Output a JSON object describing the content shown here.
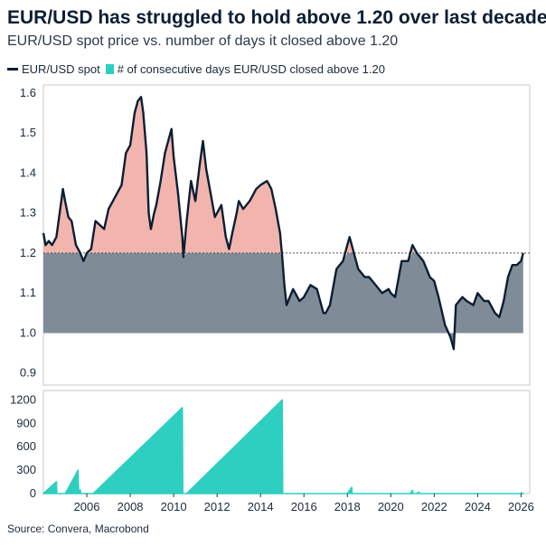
{
  "title": "EUR/USD has struggled to hold above 1.20 over last decade",
  "subtitle": "EUR/USD spot price vs. number of days it closed above 1.20",
  "legend": {
    "spot": "EUR/USD spot",
    "days": "# of consecutive days EUR/USD closed above 1.20"
  },
  "source": "Source: Convera, Macrobond",
  "colors": {
    "spot_line": "#0b1e33",
    "above_fill": "#f2b5ad",
    "below_fill": "#7f8c98",
    "days_fill": "#2ecfc0",
    "threshold_line": "#555555",
    "axis": "#c8c8c8"
  },
  "chart_data": [
    {
      "type": "area",
      "series": [
        {
          "name": "EUR/USD spot",
          "x": [
            2004.0,
            2004.1,
            2004.25,
            2004.4,
            2004.6,
            2004.75,
            2004.9,
            2005.0,
            2005.15,
            2005.3,
            2005.5,
            2005.7,
            2005.85,
            2006.0,
            2006.2,
            2006.4,
            2006.6,
            2006.8,
            2007.0,
            2007.2,
            2007.4,
            2007.6,
            2007.8,
            2008.0,
            2008.2,
            2008.35,
            2008.5,
            2008.6,
            2008.75,
            2008.85,
            2008.95,
            2009.1,
            2009.2,
            2009.4,
            2009.6,
            2009.8,
            2009.9,
            2010.0,
            2010.2,
            2010.4,
            2010.45,
            2010.6,
            2010.8,
            2011.0,
            2011.2,
            2011.35,
            2011.5,
            2011.7,
            2011.9,
            2012.0,
            2012.2,
            2012.4,
            2012.55,
            2012.7,
            2012.9,
            2013.0,
            2013.2,
            2013.5,
            2013.8,
            2014.0,
            2014.3,
            2014.5,
            2014.7,
            2014.9,
            2015.0,
            2015.1,
            2015.2,
            2015.5,
            2015.8,
            2016.0,
            2016.3,
            2016.6,
            2016.9,
            2017.0,
            2017.2,
            2017.5,
            2017.8,
            2018.0,
            2018.1,
            2018.3,
            2018.5,
            2018.8,
            2019.0,
            2019.3,
            2019.6,
            2019.9,
            2020.0,
            2020.2,
            2020.5,
            2020.8,
            2021.0,
            2021.2,
            2021.5,
            2021.8,
            2022.0,
            2022.2,
            2022.5,
            2022.75,
            2022.9,
            2023.0,
            2023.3,
            2023.5,
            2023.8,
            2024.0,
            2024.3,
            2024.5,
            2024.8,
            2025.0,
            2025.2,
            2025.4,
            2025.6,
            2025.8,
            2026.0,
            2026.1
          ],
          "y": [
            1.25,
            1.22,
            1.23,
            1.22,
            1.24,
            1.3,
            1.36,
            1.33,
            1.29,
            1.28,
            1.22,
            1.2,
            1.18,
            1.2,
            1.21,
            1.28,
            1.27,
            1.26,
            1.31,
            1.33,
            1.35,
            1.37,
            1.45,
            1.47,
            1.55,
            1.58,
            1.59,
            1.55,
            1.45,
            1.3,
            1.26,
            1.3,
            1.32,
            1.38,
            1.45,
            1.49,
            1.51,
            1.44,
            1.35,
            1.24,
            1.19,
            1.28,
            1.38,
            1.33,
            1.42,
            1.48,
            1.41,
            1.35,
            1.29,
            1.3,
            1.32,
            1.24,
            1.21,
            1.25,
            1.3,
            1.33,
            1.31,
            1.33,
            1.36,
            1.37,
            1.38,
            1.36,
            1.31,
            1.25,
            1.19,
            1.12,
            1.07,
            1.11,
            1.08,
            1.09,
            1.12,
            1.11,
            1.05,
            1.05,
            1.07,
            1.16,
            1.18,
            1.22,
            1.24,
            1.2,
            1.16,
            1.14,
            1.14,
            1.12,
            1.1,
            1.11,
            1.1,
            1.09,
            1.18,
            1.18,
            1.22,
            1.2,
            1.18,
            1.14,
            1.13,
            1.09,
            1.02,
            0.99,
            0.96,
            1.07,
            1.09,
            1.08,
            1.07,
            1.1,
            1.08,
            1.08,
            1.05,
            1.04,
            1.08,
            1.14,
            1.17,
            1.17,
            1.18,
            1.2
          ]
        }
      ],
      "threshold": 1.2,
      "xlim": [
        2004.0,
        2026.4
      ],
      "ylim": [
        0.87,
        1.62
      ],
      "yticks": [
        "0.9",
        "1.0",
        "1.1",
        "1.2",
        "1.3",
        "1.4",
        "1.5",
        "1.6"
      ],
      "ytick_values": [
        0.9,
        1.0,
        1.1,
        1.2,
        1.3,
        1.4,
        1.5,
        1.6
      ]
    },
    {
      "type": "area",
      "series": [
        {
          "name": "# of consecutive days EUR/USD closed above 1.20",
          "x": [
            2004.0,
            2004.6,
            2004.62,
            2004.7,
            2004.72,
            2005.0,
            2005.01,
            2005.6,
            2005.62,
            2005.7,
            2005.72,
            2005.8,
            2005.82,
            2006.3,
            2006.3,
            2010.4,
            2010.42,
            2010.6,
            2015.0,
            2015.02,
            2018.0,
            2018.2,
            2018.22,
            2020.9,
            2021.0,
            2021.02,
            2021.2,
            2021.3,
            2021.32,
            2026.0,
            2026.02,
            2026.1
          ],
          "y": [
            0,
            150,
            0,
            0,
            0,
            0,
            0,
            300,
            0,
            50,
            0,
            0,
            0,
            0,
            0,
            1100,
            0,
            0,
            1200,
            0,
            0,
            80,
            0,
            0,
            40,
            0,
            0,
            20,
            0,
            0,
            10,
            0
          ]
        }
      ],
      "xlim": [
        2004.0,
        2026.4
      ],
      "ylim": [
        0,
        1320
      ],
      "yticks": [
        "0",
        "300",
        "600",
        "900",
        "1200"
      ],
      "ytick_values": [
        0,
        300,
        600,
        900,
        1200
      ],
      "xticks": [
        "2006",
        "2008",
        "2010",
        "2012",
        "2014",
        "2016",
        "2018",
        "2020",
        "2022",
        "2024",
        "2026"
      ],
      "xtick_values": [
        2006,
        2008,
        2010,
        2012,
        2014,
        2016,
        2018,
        2020,
        2022,
        2024,
        2026
      ]
    }
  ]
}
